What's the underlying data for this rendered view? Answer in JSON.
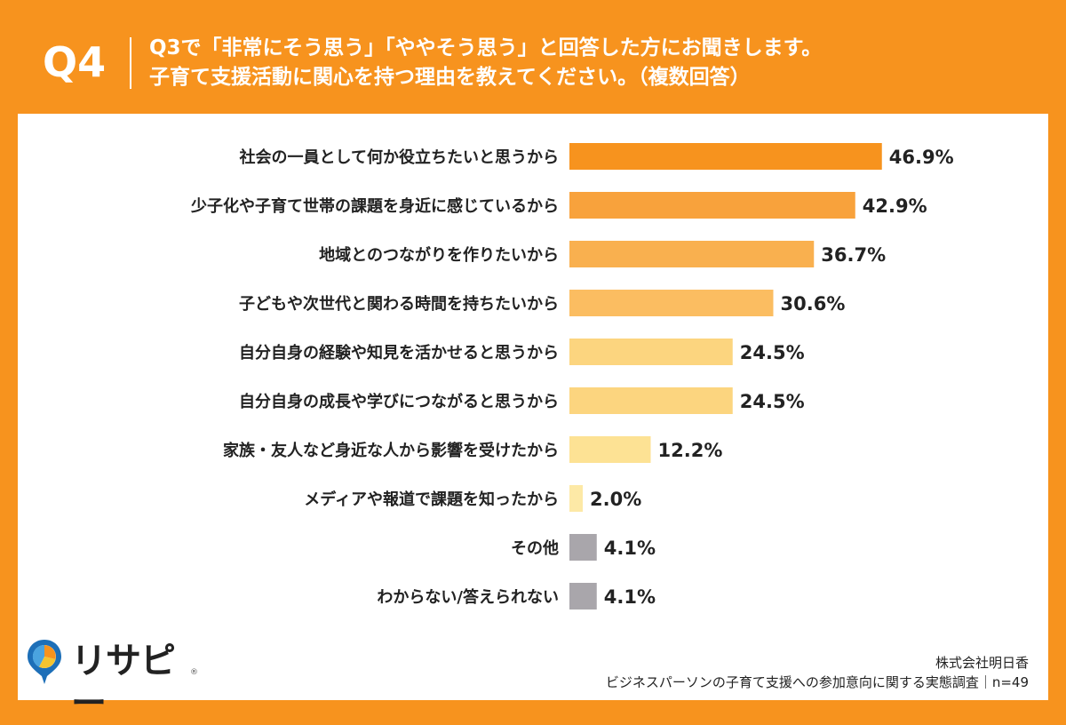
{
  "header": {
    "question_number": "Q4",
    "question_line1": "Q3で「非常にそう思う」「ややそう思う」と回答した方にお聞きします。",
    "question_line2": "子育て支援活動に関心を持つ理由を教えてください。（複数回答）"
  },
  "chart_data": {
    "type": "bar",
    "orientation": "horizontal",
    "categories": [
      "社会の一員として何か役立ちたいと思うから",
      "少子化や子育て世帯の課題を身近に感じているから",
      "地域とのつながりを作りたいから",
      "子どもや次世代と関わる時間を持ちたいから",
      "自分自身の経験や知見を活かせると思うから",
      "自分自身の成長や学びにつながると思うから",
      "家族・友人など身近な人から影響を受けたから",
      "メディアや報道で課題を知ったから",
      "その他",
      "わからない/答えられない"
    ],
    "values": [
      46.9,
      42.9,
      36.7,
      30.6,
      24.5,
      24.5,
      12.2,
      2.0,
      4.1,
      4.1
    ],
    "value_labels": [
      "46.9%",
      "42.9%",
      "36.7%",
      "30.6%",
      "24.5%",
      "24.5%",
      "12.2%",
      "2.0%",
      "4.1%",
      "4.1%"
    ],
    "colors": [
      "#f7931e",
      "#f8a23c",
      "#f9b04f",
      "#fbbd61",
      "#fcd57f",
      "#fcd57f",
      "#fde294",
      "#fde9a6",
      "#a9a6ab",
      "#a9a6ab"
    ],
    "xlim": [
      0,
      50
    ],
    "grid": false,
    "legend": "none"
  },
  "logo": {
    "name": "リサピー",
    "mark": "®"
  },
  "footer": {
    "company": "株式会社明日香",
    "survey": "ビジネスパーソンの子育て支援への参加意向に関する実態調査｜n=49"
  }
}
